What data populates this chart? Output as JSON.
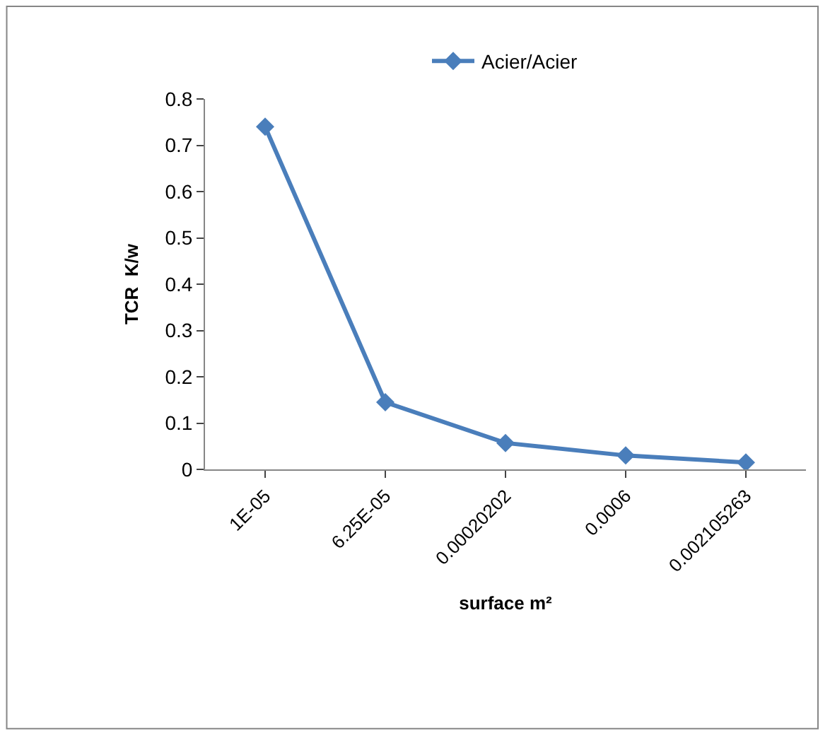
{
  "chart_data": {
    "type": "line",
    "xlabel": "surface m²",
    "ylabel": "TCR  K/w",
    "categories": [
      "1E-05",
      "6.25E-05",
      "0.00020202",
      "0.0006",
      "0.002105263"
    ],
    "series": [
      {
        "name": "Acier/Acier",
        "color": "#4a7ebb",
        "values": [
          0.74,
          0.145,
          0.057,
          0.03,
          0.015
        ]
      }
    ],
    "ylim": [
      0,
      0.8
    ],
    "yticks": [
      0,
      0.1,
      0.2,
      0.3,
      0.4,
      0.5,
      0.6,
      0.7,
      0.8
    ],
    "marker": "diamond",
    "line_style": "solid",
    "legend": "top"
  }
}
